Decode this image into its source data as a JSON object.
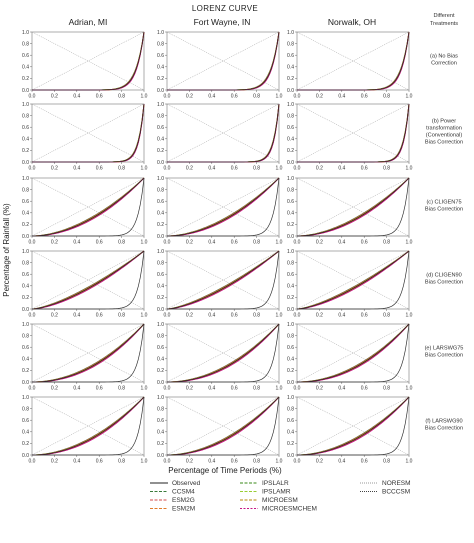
{
  "title": "LORENZ CURVE",
  "treatments_header": [
    "Different",
    "Treatments"
  ],
  "xlabel": "Percentage of Time Periods (%)",
  "ylabel": "Percentage of Rainfall (%)",
  "columns": [
    "Adrian, MI",
    "Fort Wayne, IN",
    "Norwalk, OH"
  ],
  "rows": [
    {
      "label_lines": [
        "(a) No Bias",
        "Correction"
      ],
      "power": 14
    },
    {
      "label_lines": [
        "(b) Power",
        "transformation",
        "(Conventional)",
        "Bias Correction"
      ],
      "power": 20
    },
    {
      "label_lines": [
        "(c) CLIGEN75",
        "Bias Correction"
      ],
      "power": 1.9
    },
    {
      "label_lines": [
        "(d) CLIGEN90",
        "Bias Correction"
      ],
      "power": 1.5
    },
    {
      "label_lines": [
        "(e) LARSWG75",
        "Bias Correction"
      ],
      "power": 2.1
    },
    {
      "label_lines": [
        "(f) LARSWG90",
        "Bias Correction"
      ],
      "power": 2.0
    }
  ],
  "tick_labels": [
    "0.0",
    "0.2",
    "0.4",
    "0.6",
    "0.8",
    "1.0"
  ],
  "legend": [
    {
      "name": "Observed",
      "color": "#222222",
      "dash": "solid"
    },
    {
      "name": "CCSM4",
      "color": "#3a7a3a",
      "dash": "3,1.5"
    },
    {
      "name": "ESM2G",
      "color": "#d04a4a",
      "dash": "3,1.5"
    },
    {
      "name": "ESM2M",
      "color": "#e07a2a",
      "dash": "3,1.5"
    },
    {
      "name": "IPSLALR",
      "color": "#3a8a1a",
      "dash": "3,1.5"
    },
    {
      "name": "IPSLAMR",
      "color": "#9acd32",
      "dash": "3,1.5"
    },
    {
      "name": "MICROESM",
      "color": "#b8860b",
      "dash": "3,1.5"
    },
    {
      "name": "MICROESMCHEM",
      "color": "#c71585",
      "dash": "2,1.5"
    },
    {
      "name": "NORESM",
      "color": "#999999",
      "dash": "1,1"
    },
    {
      "name": "BCCCSM",
      "color": "#444444",
      "dash": "1,1"
    }
  ],
  "chart_data": {
    "type": "line",
    "title": "LORENZ CURVE",
    "xlabel": "Percentage of Time Periods (%)",
    "ylabel": "Percentage of Rainfall (%)",
    "xlim": [
      0,
      1
    ],
    "ylim": [
      0,
      1
    ],
    "x": [
      0,
      0.2,
      0.4,
      0.6,
      0.8,
      0.9,
      1.0
    ],
    "panels": [
      {
        "row": "(a) No Bias Correction",
        "series": [
          {
            "name": "Observed",
            "values": [
              0,
              0.0,
              0.0,
              0.0,
              0.06,
              0.23,
              1.0
            ]
          },
          {
            "name": "CCSM4",
            "values": [
              0,
              0.0,
              0.0,
              0.0,
              0.05,
              0.22,
              1.0
            ]
          }
        ]
      },
      {
        "row": "(b) Power transformation (Conventional) Bias Correction",
        "series": [
          {
            "name": "Observed",
            "values": [
              0,
              0.0,
              0.0,
              0.0,
              0.01,
              0.12,
              1.0
            ]
          },
          {
            "name": "ESM2G",
            "values": [
              0,
              0.0,
              0.0,
              0.0,
              0.01,
              0.12,
              1.0
            ]
          }
        ]
      },
      {
        "row": "(c) CLIGEN75 Bias Correction",
        "series": [
          {
            "name": "Observed",
            "values": [
              0,
              0.05,
              0.18,
              0.38,
              0.65,
              0.82,
              1.0
            ]
          },
          {
            "name": "IPSLAMR",
            "values": [
              0,
              0.05,
              0.18,
              0.38,
              0.65,
              0.82,
              1.0
            ]
          }
        ]
      },
      {
        "row": "(d) CLIGEN90 Bias Correction",
        "series": [
          {
            "name": "Observed",
            "values": [
              0,
              0.09,
              0.25,
              0.46,
              0.72,
              0.85,
              1.0
            ]
          },
          {
            "name": "ESM2G",
            "values": [
              0,
              0.09,
              0.25,
              0.46,
              0.72,
              0.85,
              1.0
            ]
          }
        ]
      },
      {
        "row": "(e) LARSWG75 Bias Correction",
        "series": [
          {
            "name": "Observed",
            "values": [
              0,
              0.03,
              0.15,
              0.34,
              0.63,
              0.8,
              1.0
            ]
          },
          {
            "name": "CCSM4",
            "values": [
              0,
              0.03,
              0.15,
              0.34,
              0.63,
              0.8,
              1.0
            ]
          }
        ]
      },
      {
        "row": "(f) LARSWG90 Bias Correction",
        "series": [
          {
            "name": "Observed",
            "values": [
              0,
              0.04,
              0.16,
              0.36,
              0.64,
              0.81,
              1.0
            ]
          },
          {
            "name": "IPSLAMR",
            "values": [
              0,
              0.04,
              0.16,
              0.36,
              0.64,
              0.81,
              1.0
            ]
          }
        ]
      }
    ],
    "columns": [
      "Adrian, MI",
      "Fort Wayne, IN",
      "Norwalk, OH"
    ],
    "grid": false,
    "legend_position": "bottom"
  }
}
